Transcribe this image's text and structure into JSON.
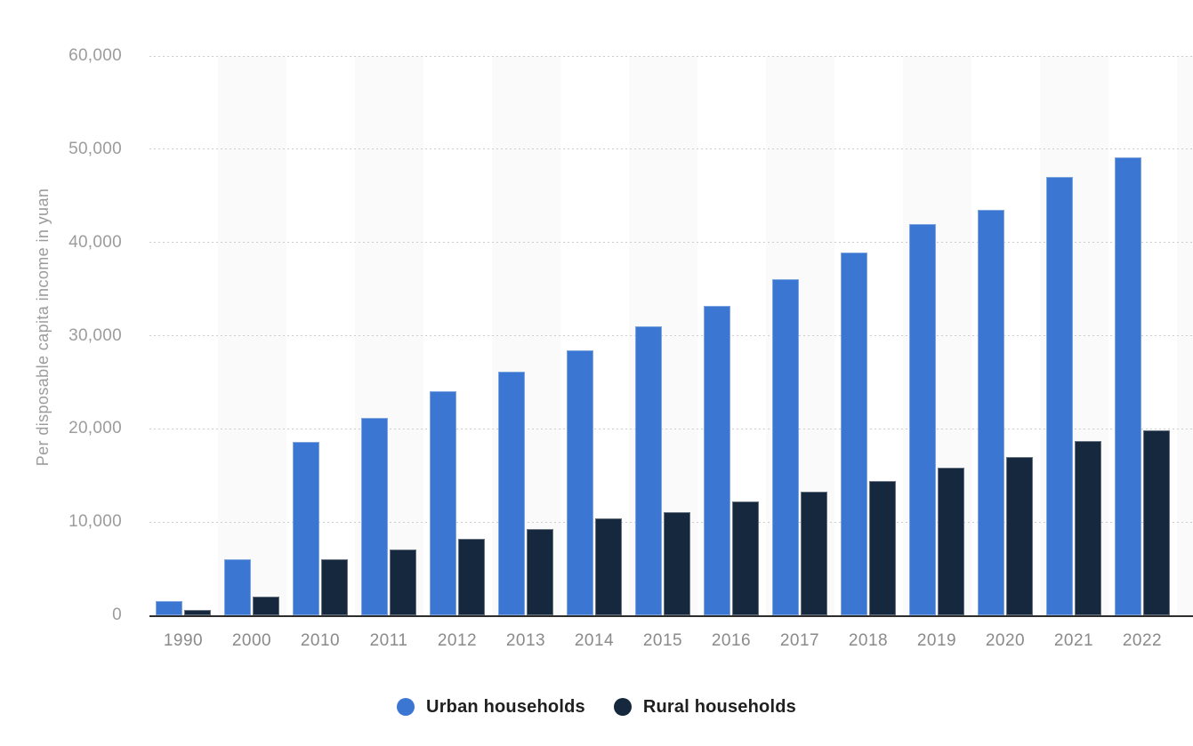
{
  "chart_data": {
    "type": "bar",
    "title": "",
    "xlabel": "",
    "ylabel": "Per disposable capita income in yuan",
    "unit": "yuan",
    "categories": [
      "1990",
      "2000",
      "2010",
      "2011",
      "2012",
      "2013",
      "2014",
      "2015",
      "2016",
      "2017",
      "2018",
      "2019",
      "2020",
      "2021",
      "2022"
    ],
    "series": [
      {
        "name": "Urban households",
        "color": "#3B76D2",
        "values": [
          1500,
          6000,
          18600,
          21200,
          24000,
          26100,
          28400,
          31000,
          33200,
          36100,
          38900,
          42000,
          43500,
          47000,
          49100
        ]
      },
      {
        "name": "Rural households",
        "color": "#16283E",
        "values": [
          600,
          2000,
          6000,
          7100,
          8200,
          9300,
          10400,
          11100,
          12200,
          13300,
          14400,
          15800,
          17000,
          18700,
          19800
        ]
      }
    ],
    "ylim": [
      0,
      60000
    ],
    "ytick_interval": 10000,
    "ytick_labels": [
      "0",
      "10,000",
      "20,000",
      "30,000",
      "40,000",
      "50,000",
      "60,000"
    ],
    "grid": "horizontal dotted gridlines",
    "plot_background": "alternating vertical stripes on every second category",
    "legend_position": "bottom-center"
  },
  "palette": {
    "urban_blue": "#3B76D2",
    "rural_navy": "#16283E",
    "stripe": "#FAFAFA",
    "gridline": "#CDCDCD",
    "axis_line": "#2D2D2D",
    "ytick_text": "#9C9C9C",
    "xlabel_text": "#8A8A8A",
    "legend_text": "#1F1F1F",
    "background": "#FFFFFF"
  }
}
